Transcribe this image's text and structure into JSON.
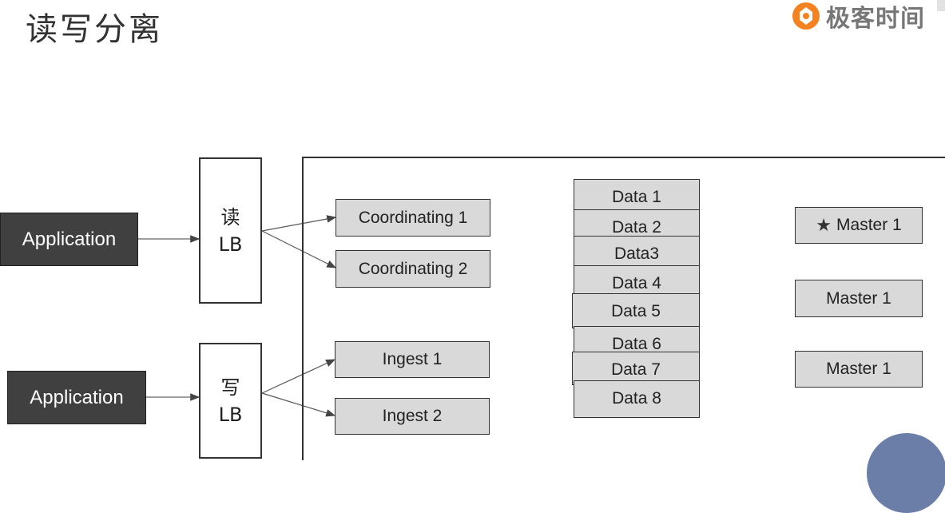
{
  "header": {
    "title": "读写分离",
    "brand": "极客时间"
  },
  "applications": [
    {
      "label": "Application"
    },
    {
      "label": "Application"
    }
  ],
  "load_balancers": [
    {
      "line1": "读",
      "line2": "LB"
    },
    {
      "line1": "写",
      "line2": "LB"
    }
  ],
  "coordinating_nodes": [
    "Coordinating 1",
    "Coordinating 2"
  ],
  "ingest_nodes": [
    "Ingest 1",
    "Ingest 2"
  ],
  "data_nodes": [
    "Data 1",
    "Data 2",
    "Data3",
    "Data 4",
    "Data 5",
    "Data 6",
    "Data 7",
    "Data 8"
  ],
  "master_nodes": [
    {
      "label": "Master 1",
      "starred": true
    },
    {
      "label": "Master 1",
      "starred": false
    },
    {
      "label": "Master 1",
      "starred": false
    }
  ],
  "colors": {
    "app_fill": "#404040",
    "node_fill": "#d9d9d9",
    "brand_orange": "#f58220"
  }
}
